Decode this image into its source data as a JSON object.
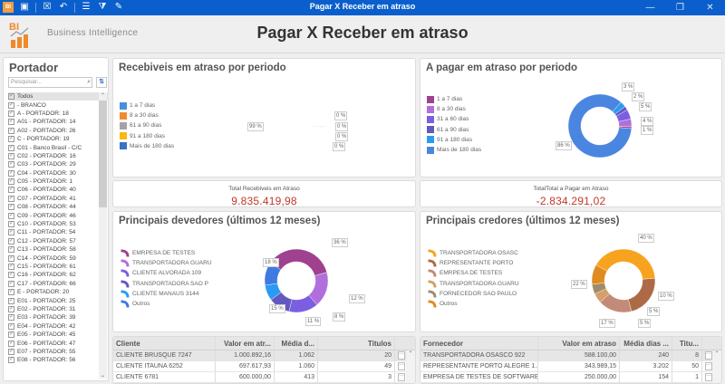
{
  "window": {
    "title": "Pagar X Receber em atraso",
    "toolbar_icons": [
      "bi-app-icon",
      "save-icon",
      "close-doc-icon",
      "undo-icon",
      "list-icon",
      "filter-icon",
      "edit-icon"
    ],
    "controls": {
      "minimize": "—",
      "restore": "❐",
      "close": "✕"
    }
  },
  "header": {
    "logo_text": "BI",
    "subtitle": "Business Intelligence",
    "page_title": "Pagar X Receber em atraso"
  },
  "portador": {
    "title": "Portador",
    "search_placeholder": "Pesquisar...",
    "items": [
      "Todos",
      " - BRANCO",
      "A - PORTADOR: 18",
      "A01 - PORTADOR: 14",
      "A02 - PORTADOR: 26",
      "C - PORTADOR: 19",
      "C01 - Banco Brasil - C/C",
      "C02 - PORTADOR: 16",
      "C03 - PORTADOR: 29",
      "C04 - PORTADOR: 30",
      "C05 - PORTADOR: 1",
      "C06 - PORTADOR: 40",
      "C07 - PORTADOR: 41",
      "C08 - PORTADOR: 44",
      "C09 - PORTADOR: 46",
      "C10 - PORTADOR: 53",
      "C11 - PORTADOR: 54",
      "C12 - PORTADOR: 57",
      "C13 - PORTADOR: 58",
      "C14 - PORTADOR: 59",
      "C15 - PORTADOR: 61",
      "C16 - PORTADOR: 62",
      "C17 - PORTADOR: 66",
      "E - PORTADOR: 20",
      "E01 - PORTADOR: 25",
      "E02 - PORTADOR: 31",
      "E03 - PORTADOR: 39",
      "E04 - PORTADOR: 42",
      "E05 - PORTADOR: 45",
      "E06 - PORTADOR: 47",
      "E07 - PORTADOR: 55",
      "E08 - PORTADOR: 56"
    ]
  },
  "recebiveis": {
    "title": "Recebiveis em atraso por periodo",
    "legend": [
      {
        "label": "1 a 7 dias",
        "color": "#4a90d9"
      },
      {
        "label": "8 a 30 dias",
        "color": "#f28a30"
      },
      {
        "label": "61 a 90 dias",
        "color": "#a3a3a3"
      },
      {
        "label": "91 a 180 dias",
        "color": "#fbb614"
      },
      {
        "label": "Mais de 180 dias",
        "color": "#3a71c8"
      }
    ],
    "labels": [
      "99 %",
      "0 %",
      "0 %",
      "0 %",
      "0 %"
    ]
  },
  "pagar": {
    "title": "A pagar em atraso por periodo",
    "legend": [
      {
        "label": "1 a 7 dias",
        "color": "#a0418f"
      },
      {
        "label": "8 a 30 dias",
        "color": "#b06fdc"
      },
      {
        "label": "31 a 60 dias",
        "color": "#7b5fe0"
      },
      {
        "label": "61 a 90 dias",
        "color": "#6259c0"
      },
      {
        "label": "91 a 180 dias",
        "color": "#2b9af3"
      },
      {
        "label": "Mais de 180 dias",
        "color": "#4a86e0"
      }
    ],
    "labels": [
      "86 %",
      "3 %",
      "2 %",
      "5 %",
      "4 %",
      "1 %"
    ]
  },
  "kpis": {
    "receber": {
      "label": "Total Recebiveis em Atraso",
      "value": "9.835.419,98"
    },
    "pagar": {
      "label": "TotalTotal a Pagar em Atraso",
      "value": "-2.834.291,02"
    }
  },
  "devedores": {
    "title": "Principais devedores (últimos 12 meses)",
    "legend": [
      {
        "label": "EMRPESA DE TESTES",
        "color": "#a0418f"
      },
      {
        "label": "TRANSPORTADORA GUARU",
        "color": "#b06fdc"
      },
      {
        "label": "CLIENTE ALVORADA 109",
        "color": "#7b5fe0"
      },
      {
        "label": "TRANSPORTADORA SAO P",
        "color": "#6259c0"
      },
      {
        "label": "CLIENTE MANAUS 3144",
        "color": "#2b9af3"
      },
      {
        "label": "Outros",
        "color": "#3f7ae0"
      }
    ],
    "labels": [
      "36 %",
      "18 %",
      "15 %",
      "11 %",
      "8 %",
      "12 %"
    ]
  },
  "credores": {
    "title": "Principais credores (últimos 12 meses)",
    "legend": [
      {
        "label": "TRANSPORTADORA OSASC",
        "color": "#f8a31f"
      },
      {
        "label": "REPRESENTANTE PORTO",
        "color": "#ae6a47"
      },
      {
        "label": "EMRPESA DE TESTES",
        "color": "#c28b78"
      },
      {
        "label": "TRANSPORTADORA GUARU",
        "color": "#d5a069"
      },
      {
        "label": "FORNECEDOR SAO PAULO",
        "color": "#a08c6a"
      },
      {
        "label": "Outros",
        "color": "#e08a20"
      }
    ],
    "labels": [
      "40 %",
      "22 %",
      "17 %",
      "5 %",
      "5 %",
      "10 %"
    ]
  },
  "clientes_table": {
    "columns": [
      "Cliente",
      "Valor em atr...",
      "Média d...",
      "Titulos"
    ],
    "rows": [
      [
        "CLIENTE BRUSQUE 7247",
        "1.000.892,16",
        "1.062",
        "20"
      ],
      [
        "CLIENTE ITAUNA 6252",
        "697.617,93",
        "1.060",
        "49"
      ],
      [
        "CLIENTE   6781",
        "600.000,00",
        "413",
        "3"
      ]
    ],
    "action_label": "···"
  },
  "fornecedores_table": {
    "columns": [
      "Fornecedor",
      "Valor em atraso",
      "Média dias ...",
      "Titu..."
    ],
    "rows": [
      [
        "TRANSPORTADORA OSASCO 922",
        "588.100,00",
        "240",
        "8"
      ],
      [
        "REPRESENTANTE PORTO ALEGRE 1...",
        "343.989,15",
        "3.202",
        "50"
      ],
      [
        "EMPRESA DE TESTES DE SOFTWARE",
        "250.000,00",
        "154",
        "1"
      ]
    ],
    "action_label": "···"
  },
  "chart_data": [
    {
      "type": "pie",
      "title": "Recebiveis em atraso por periodo",
      "categories": [
        "1 a 7 dias",
        "8 a 30 dias",
        "61 a 90 dias",
        "91 a 180 dias",
        "Mais de 180 dias"
      ],
      "values": [
        0,
        0,
        0,
        0,
        99
      ],
      "donut": true,
      "legend_position": "left"
    },
    {
      "type": "pie",
      "title": "A pagar em atraso por periodo",
      "categories": [
        "1 a 7 dias",
        "8 a 30 dias",
        "31 a 60 dias",
        "61 a 90 dias",
        "91 a 180 dias",
        "Mais de 180 dias"
      ],
      "values": [
        1,
        4,
        5,
        2,
        3,
        86
      ],
      "donut": true,
      "legend_position": "left"
    },
    {
      "type": "pie",
      "title": "Principais devedores (últimos 12 meses)",
      "categories": [
        "EMRPESA DE TESTES",
        "TRANSPORTADORA GUARU",
        "CLIENTE ALVORADA 109",
        "TRANSPORTADORA SAO P",
        "CLIENTE MANAUS 3144",
        "Outros"
      ],
      "values": [
        36,
        18,
        15,
        11,
        8,
        12
      ],
      "donut": true,
      "legend_position": "left"
    },
    {
      "type": "pie",
      "title": "Principais credores (últimos 12 meses)",
      "categories": [
        "TRANSPORTADORA OSASC",
        "REPRESENTANTE PORTO",
        "EMRPESA DE TESTES",
        "TRANSPORTADORA GUARU",
        "FORNECEDOR SAO PAULO",
        "Outros"
      ],
      "values": [
        40,
        22,
        17,
        5,
        5,
        10
      ],
      "donut": true,
      "legend_position": "left"
    }
  ]
}
